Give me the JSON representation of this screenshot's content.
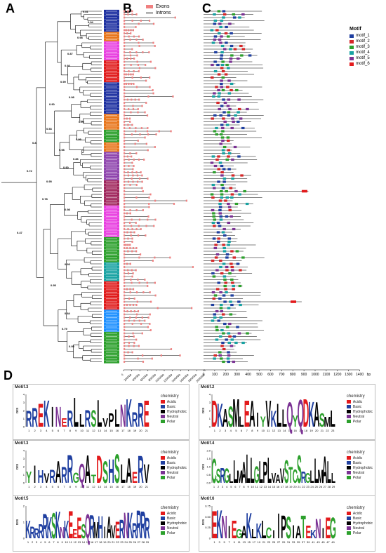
{
  "panels": {
    "a": "A",
    "b": "B",
    "c": "C",
    "d": "D"
  },
  "legend_b": {
    "exons": "Exons",
    "introns": "Introns"
  },
  "legend_c": {
    "title": "Motif",
    "items": [
      {
        "label": "motif_1",
        "color": "#1f3fa0"
      },
      {
        "label": "motif_2",
        "color": "#d62728"
      },
      {
        "label": "motif_3",
        "color": "#2ca02c"
      },
      {
        "label": "motif_4",
        "color": "#17a2a2"
      },
      {
        "label": "motif_5",
        "color": "#7b3294"
      },
      {
        "label": "motif_6",
        "color": "#e31a1c"
      }
    ]
  },
  "axis_b": {
    "ticks": [
      "0",
      "2000bp",
      "4000bp",
      "6000bp",
      "8000bp",
      "10000bp",
      "12000bp",
      "14000bp",
      "16000bp",
      "18000bp",
      "20000bp"
    ]
  },
  "axis_c": {
    "ticks": [
      "0",
      "100",
      "200",
      "300",
      "400",
      "500",
      "600",
      "700",
      "800",
      "900",
      "1000",
      "1100",
      "1200",
      "1300",
      "1400"
    ],
    "unit": "bp"
  },
  "tree_bootstrap": [
    "0.81",
    "0.94",
    "0.98",
    "0.87",
    "0.93",
    "0.99",
    "0.98",
    "0.90",
    "0.99",
    "0.53",
    "0.99",
    "0.98",
    "0.8",
    "0.86",
    "0.90",
    "0.95",
    "0.72",
    "0.78",
    "0.98",
    "0.47",
    "0.93",
    "0.95",
    "0.84",
    "0.79",
    "0.95"
  ],
  "clade_colors": [
    "#1c2fa0",
    "#e8751a",
    "#e83fe0",
    "#e01a1a",
    "#1c2fa0",
    "#e8751a",
    "#2ca02c",
    "#e8751a",
    "#8e44ad",
    "#a0265c",
    "#e83fe0",
    "#2ca02c",
    "#17a2a2",
    "#e01a1a",
    "#1e90ff",
    "#2ca02c"
  ],
  "logos": [
    {
      "title": "Motif.3",
      "ticks": [
        "1",
        "2",
        "3",
        "4",
        "5",
        "6",
        "7",
        "8",
        "9",
        "10",
        "11",
        "12",
        "13",
        "14",
        "15",
        "16",
        "17",
        "18",
        "19",
        "20",
        "21"
      ],
      "seq": "RREKINERLLRSLVPLNK",
      "yticks": [
        "4",
        "3",
        "2",
        "1",
        "0"
      ]
    },
    {
      "title": "Motif.2",
      "ticks": [
        "1",
        "2",
        "3",
        "4",
        "5",
        "6",
        "7",
        "8",
        "9",
        "10",
        "11",
        "12",
        "13",
        "14",
        "15",
        "16",
        "17",
        "18",
        "19",
        "20",
        "21",
        "22",
        "23"
      ],
      "seq": "DKASMLEAIYVKLLQYQ",
      "yticks": [
        "4",
        "3",
        "2",
        "1",
        "0"
      ]
    },
    {
      "title": "Motif.3",
      "ticks": [
        "1",
        "2",
        "3",
        "4",
        "5",
        "6",
        "7",
        "8",
        "9",
        "10",
        "11",
        "12",
        "13",
        "14",
        "15",
        "16",
        "17",
        "18",
        "19",
        "20",
        "21"
      ],
      "seq": "YIHVRARRGQATDSHSLAERV",
      "yticks": [
        "4",
        "3",
        "2",
        "1",
        "0"
      ]
    },
    {
      "title": "Motif.4",
      "ticks": [
        "1",
        "2",
        "3",
        "4",
        "5",
        "6",
        "7",
        "8",
        "9",
        "10",
        "11",
        "12",
        "13",
        "14",
        "15",
        "16",
        "17",
        "18",
        "19",
        "20",
        "21",
        "22",
        "23",
        "24",
        "25",
        "26",
        "27",
        "28",
        "29"
      ],
      "seq": "CSRGLLMALLGLPLVAVST",
      "yticks": [
        "2.0",
        "1.5",
        "1.0",
        "0.5",
        "0.0"
      ]
    },
    {
      "title": "Motif.5",
      "ticks": [
        "1",
        "2",
        "3",
        "4",
        "5",
        "6",
        "7",
        "8",
        "9",
        "10",
        "11",
        "12",
        "13",
        "14",
        "15",
        "16",
        "17",
        "18",
        "19",
        "20",
        "21",
        "22",
        "23",
        "24",
        "25",
        "26",
        "27",
        "28",
        "29"
      ],
      "seq": "KRRRRKSKNKEEESQRMHIAVERN",
      "yticks": [
        "2",
        "1",
        "0"
      ]
    },
    {
      "title": "Motif.6",
      "ticks": [
        "1",
        "3",
        "5",
        "7",
        "9",
        "11",
        "13",
        "15",
        "17",
        "19",
        "21",
        "23",
        "25",
        "27",
        "29",
        "31",
        "33",
        "35",
        "37",
        "39",
        "41",
        "43",
        "45",
        "47",
        "49"
      ],
      "seq": "EKNIEGAKLKLCIIPSIAT",
      "yticks": [
        "0.75",
        "0.50",
        "0.25",
        "0"
      ]
    }
  ],
  "chemistry": {
    "title": "chemistry",
    "items": [
      {
        "label": "Acidic",
        "color": "#e31a1c"
      },
      {
        "label": "Basic",
        "color": "#1f3fa0"
      },
      {
        "label": "Hydrophobic",
        "color": "#000000"
      },
      {
        "label": "Neutral",
        "color": "#7b3294"
      },
      {
        "label": "Polar",
        "color": "#2ca02c"
      }
    ]
  },
  "bits_label": "Bits"
}
